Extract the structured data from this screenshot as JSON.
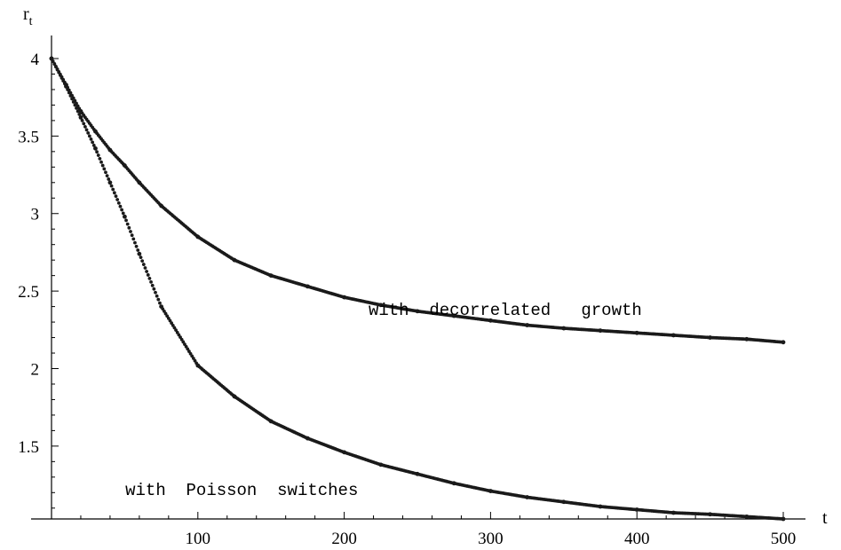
{
  "chart_data": {
    "type": "scatter",
    "title": "",
    "xlabel": "t",
    "ylabel": "r",
    "ylabel_subscript": "t",
    "xlim": [
      0,
      510
    ],
    "ylim": [
      1.03,
      4.1
    ],
    "xticks": [
      100,
      200,
      300,
      400,
      500
    ],
    "xtick_labels": [
      "100",
      "200",
      "300",
      "400",
      "500"
    ],
    "yticks": [
      1.5,
      2,
      2.5,
      3,
      3.5,
      4
    ],
    "ytick_labels": [
      "1.5",
      "2",
      "2.5",
      "3",
      "3.5",
      "4"
    ],
    "grid": false,
    "legend": "none",
    "marker_color": "#1a1a1a",
    "annotations": [
      {
        "text": "with  decorrelated   growth",
        "x": 310,
        "y": 2.38
      },
      {
        "text": "with  Poisson  switches",
        "x": 130,
        "y": 1.22
      }
    ],
    "series": [
      {
        "name": "with decorrelated growth",
        "x": [
          0,
          10,
          20,
          30,
          40,
          50,
          60,
          75,
          100,
          125,
          150,
          175,
          200,
          225,
          250,
          275,
          300,
          325,
          350,
          375,
          400,
          425,
          450,
          475,
          500
        ],
        "y": [
          4.0,
          3.83,
          3.66,
          3.53,
          3.41,
          3.31,
          3.2,
          3.05,
          2.85,
          2.7,
          2.6,
          2.53,
          2.46,
          2.41,
          2.37,
          2.34,
          2.31,
          2.28,
          2.26,
          2.245,
          2.23,
          2.215,
          2.2,
          2.19,
          2.17
        ]
      },
      {
        "name": "with Poisson switches",
        "x": [
          0,
          10,
          20,
          30,
          40,
          50,
          60,
          75,
          100,
          125,
          150,
          175,
          200,
          225,
          250,
          275,
          300,
          325,
          350,
          375,
          400,
          425,
          450,
          475,
          500
        ],
        "y": [
          4.0,
          3.82,
          3.62,
          3.42,
          3.2,
          2.98,
          2.74,
          2.4,
          2.02,
          1.82,
          1.66,
          1.55,
          1.46,
          1.38,
          1.32,
          1.26,
          1.21,
          1.17,
          1.14,
          1.11,
          1.09,
          1.07,
          1.06,
          1.045,
          1.03
        ]
      }
    ]
  }
}
